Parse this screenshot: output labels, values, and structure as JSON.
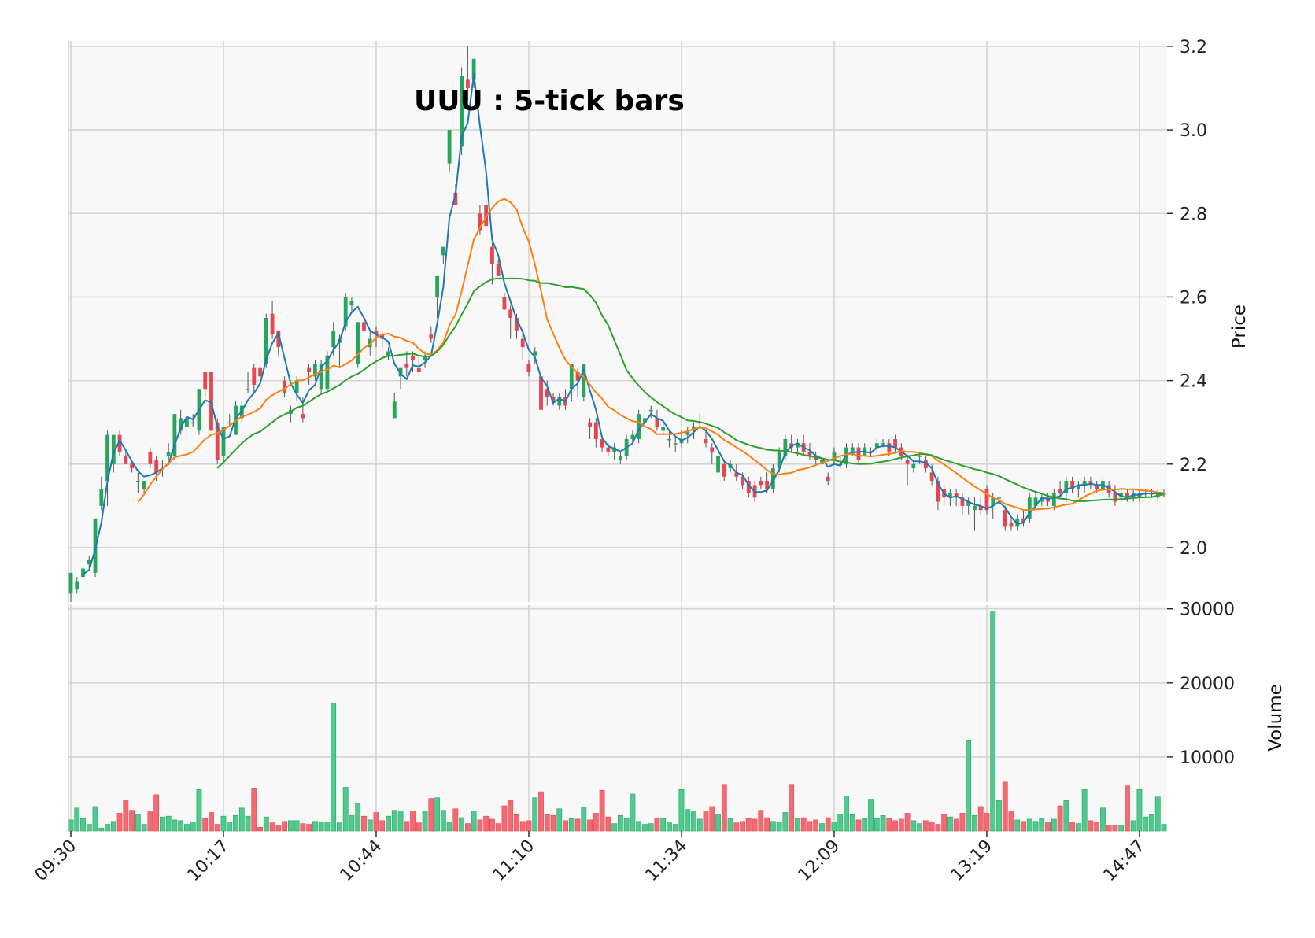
{
  "chart_data": {
    "type": "candlestick",
    "title": "UUU : 5-tick bars",
    "ylabel": "Price",
    "volume_label": "Volume",
    "price_ylim": [
      1.87,
      3.2
    ],
    "price_ticks": [
      2.0,
      2.2,
      2.4,
      2.6,
      2.8,
      3.0,
      3.2
    ],
    "volume_ylim": [
      0,
      30500
    ],
    "volume_ticks": [
      10000,
      20000,
      30000
    ],
    "x_tick_labels": [
      "09:30",
      "10:17",
      "10:44",
      "11:10",
      "11:34",
      "12:09",
      "13:19",
      "14:47"
    ],
    "x_tick_bar_index": [
      0,
      25,
      50,
      75,
      100,
      125,
      150,
      175
    ],
    "grid": true,
    "colors": {
      "up": "#26a65b",
      "down": "#e8454f",
      "volume_up": "#50c88f",
      "volume_down": "#f26b74",
      "ma_short": "#1f77b4",
      "ma_mid": "#ff7f0e",
      "ma_long": "#2ca02c",
      "panel_bg": "#f8f8f8",
      "grid": "#d4d4d4"
    },
    "moving_averages": [
      {
        "period": 3,
        "color_key": "ma_short"
      },
      {
        "period": 12,
        "color_key": "ma_mid"
      },
      {
        "period": 25,
        "color_key": "ma_long"
      }
    ],
    "bars": [
      [
        1.89,
        1.94,
        1.87,
        1.94,
        1500
      ],
      [
        1.9,
        1.93,
        1.89,
        1.92,
        3100
      ],
      [
        1.93,
        1.96,
        1.92,
        1.95,
        1700
      ],
      [
        1.96,
        1.98,
        1.95,
        1.97,
        900
      ],
      [
        1.94,
        2.07,
        1.93,
        2.07,
        3300
      ],
      [
        2.1,
        2.17,
        2.09,
        2.14,
        400
      ],
      [
        2.16,
        2.28,
        2.1,
        2.27,
        900
      ],
      [
        2.2,
        2.27,
        2.18,
        2.27,
        1300
      ],
      [
        2.27,
        2.28,
        2.22,
        2.23,
        2400
      ],
      [
        2.22,
        2.23,
        2.2,
        2.2,
        4200
      ],
      [
        2.2,
        2.21,
        2.18,
        2.19,
        2800
      ],
      [
        2.16,
        2.18,
        2.13,
        2.16,
        2300
      ],
      [
        2.14,
        2.16,
        2.13,
        2.16,
        900
      ],
      [
        2.23,
        2.24,
        2.19,
        2.2,
        2600
      ],
      [
        2.21,
        2.22,
        2.16,
        2.18,
        4900
      ],
      [
        2.19,
        2.21,
        2.17,
        2.19,
        1900
      ],
      [
        2.22,
        2.25,
        2.21,
        2.23,
        2000
      ],
      [
        2.22,
        2.32,
        2.21,
        2.32,
        1500
      ],
      [
        2.28,
        2.33,
        2.27,
        2.31,
        1400
      ],
      [
        2.29,
        2.31,
        2.26,
        2.31,
        900
      ],
      [
        2.3,
        2.32,
        2.29,
        2.3,
        1200
      ],
      [
        2.28,
        2.38,
        2.27,
        2.38,
        5600
      ],
      [
        2.42,
        2.42,
        2.36,
        2.38,
        1700
      ],
      [
        2.42,
        2.42,
        2.28,
        2.28,
        2500
      ],
      [
        2.3,
        2.31,
        2.2,
        2.21,
        900
      ],
      [
        2.22,
        2.29,
        2.2,
        2.29,
        2000
      ],
      [
        2.3,
        2.32,
        2.29,
        2.3,
        1200
      ],
      [
        2.27,
        2.35,
        2.27,
        2.34,
        2100
      ],
      [
        2.31,
        2.35,
        2.3,
        2.34,
        3100
      ],
      [
        2.38,
        2.42,
        2.37,
        2.38,
        2000
      ],
      [
        2.43,
        2.44,
        2.37,
        2.39,
        5700
      ],
      [
        2.43,
        2.46,
        2.4,
        2.41,
        500
      ],
      [
        2.44,
        2.56,
        2.43,
        2.55,
        1900
      ],
      [
        2.56,
        2.59,
        2.5,
        2.51,
        1100
      ],
      [
        2.52,
        2.52,
        2.46,
        2.48,
        800
      ],
      [
        2.4,
        2.41,
        2.36,
        2.37,
        1300
      ],
      [
        2.32,
        2.34,
        2.3,
        2.33,
        1400
      ],
      [
        2.37,
        2.41,
        2.35,
        2.4,
        1400
      ],
      [
        2.32,
        2.36,
        2.3,
        2.31,
        1000
      ],
      [
        2.43,
        2.44,
        2.39,
        2.42,
        900
      ],
      [
        2.41,
        2.45,
        2.4,
        2.44,
        1300
      ],
      [
        2.38,
        2.45,
        2.37,
        2.44,
        1200
      ],
      [
        2.38,
        2.47,
        2.37,
        2.46,
        1200
      ],
      [
        2.48,
        2.54,
        2.46,
        2.52,
        17300
      ],
      [
        2.49,
        2.51,
        2.43,
        2.5,
        1100
      ],
      [
        2.53,
        2.61,
        2.52,
        2.6,
        5900
      ],
      [
        2.58,
        2.6,
        2.56,
        2.59,
        2100
      ],
      [
        2.44,
        2.54,
        2.43,
        2.54,
        3800
      ],
      [
        2.54,
        2.55,
        2.47,
        2.52,
        2000
      ],
      [
        2.48,
        2.52,
        2.46,
        2.5,
        1500
      ],
      [
        2.52,
        2.53,
        2.48,
        2.51,
        2500
      ],
      [
        2.51,
        2.52,
        2.48,
        2.5,
        1400
      ],
      [
        2.46,
        2.48,
        2.45,
        2.47,
        2000
      ],
      [
        2.31,
        2.37,
        2.31,
        2.35,
        2800
      ],
      [
        2.41,
        2.43,
        2.38,
        2.43,
        2600
      ],
      [
        2.44,
        2.47,
        2.41,
        2.43,
        1300
      ],
      [
        2.46,
        2.47,
        2.42,
        2.45,
        2700
      ],
      [
        2.43,
        2.46,
        2.41,
        2.42,
        1100
      ],
      [
        2.45,
        2.47,
        2.43,
        2.46,
        2600
      ],
      [
        2.51,
        2.53,
        2.49,
        2.5,
        4400
      ],
      [
        2.6,
        2.65,
        2.55,
        2.65,
        4500
      ],
      [
        2.7,
        2.72,
        2.68,
        2.72,
        2800
      ],
      [
        2.92,
        3.0,
        2.9,
        3.0,
        1200
      ],
      [
        2.85,
        2.87,
        2.82,
        2.82,
        3000
      ],
      [
        2.96,
        3.15,
        2.94,
        3.13,
        1800
      ],
      [
        3.12,
        3.2,
        3.07,
        3.1,
        1000
      ],
      [
        3.12,
        3.17,
        3.1,
        3.17,
        2700
      ],
      [
        2.8,
        2.82,
        2.75,
        2.76,
        1500
      ],
      [
        2.82,
        2.83,
        2.77,
        2.77,
        2000
      ],
      [
        2.72,
        2.73,
        2.63,
        2.68,
        1600
      ],
      [
        2.68,
        2.69,
        2.65,
        2.65,
        1000
      ],
      [
        2.6,
        2.61,
        2.57,
        2.57,
        3400
      ],
      [
        2.57,
        2.58,
        2.5,
        2.55,
        4100
      ],
      [
        2.55,
        2.56,
        2.5,
        2.52,
        2200
      ],
      [
        2.5,
        2.51,
        2.45,
        2.48,
        1300
      ],
      [
        2.44,
        2.45,
        2.41,
        2.42,
        1400
      ],
      [
        2.46,
        2.48,
        2.44,
        2.47,
        4500
      ],
      [
        2.41,
        2.42,
        2.33,
        2.33,
        5300
      ],
      [
        2.38,
        2.4,
        2.34,
        2.36,
        2200
      ],
      [
        2.36,
        2.37,
        2.34,
        2.35,
        2100
      ],
      [
        2.34,
        2.37,
        2.33,
        2.36,
        3000
      ],
      [
        2.36,
        2.38,
        2.33,
        2.34,
        1400
      ],
      [
        2.38,
        2.44,
        2.35,
        2.44,
        1700
      ],
      [
        2.42,
        2.43,
        2.36,
        2.4,
        1600
      ],
      [
        2.36,
        2.44,
        2.35,
        2.44,
        3200
      ],
      [
        2.3,
        2.31,
        2.26,
        2.29,
        1500
      ],
      [
        2.3,
        2.31,
        2.24,
        2.26,
        2400
      ],
      [
        2.26,
        2.27,
        2.23,
        2.24,
        5500
      ],
      [
        2.24,
        2.25,
        2.22,
        2.23,
        1900
      ],
      [
        2.23,
        2.25,
        2.21,
        2.24,
        1000
      ],
      [
        2.21,
        2.23,
        2.2,
        2.22,
        2100
      ],
      [
        2.22,
        2.27,
        2.21,
        2.26,
        1700
      ],
      [
        2.26,
        2.28,
        2.25,
        2.27,
        5000
      ],
      [
        2.26,
        2.33,
        2.25,
        2.32,
        1300
      ],
      [
        2.3,
        2.33,
        2.29,
        2.31,
        900
      ],
      [
        2.33,
        2.34,
        2.31,
        2.33,
        1000
      ],
      [
        2.31,
        2.33,
        2.28,
        2.29,
        1700
      ],
      [
        2.28,
        2.3,
        2.27,
        2.29,
        1700
      ],
      [
        2.26,
        2.28,
        2.24,
        2.26,
        1100
      ],
      [
        2.25,
        2.27,
        2.23,
        2.25,
        900
      ],
      [
        2.25,
        2.28,
        2.24,
        2.26,
        5600
      ],
      [
        2.27,
        2.29,
        2.25,
        2.28,
        2900
      ],
      [
        2.28,
        2.3,
        2.26,
        2.29,
        2600
      ],
      [
        2.3,
        2.32,
        2.29,
        2.3,
        1600
      ],
      [
        2.26,
        2.28,
        2.24,
        2.25,
        2600
      ],
      [
        2.24,
        2.25,
        2.2,
        2.23,
        3300
      ],
      [
        2.18,
        2.23,
        2.18,
        2.22,
        2300
      ],
      [
        2.2,
        2.21,
        2.16,
        2.17,
        6300
      ],
      [
        2.19,
        2.21,
        2.18,
        2.2,
        1700
      ],
      [
        2.18,
        2.2,
        2.16,
        2.17,
        1100
      ],
      [
        2.17,
        2.18,
        2.14,
        2.15,
        1300
      ],
      [
        2.16,
        2.17,
        2.12,
        2.13,
        1700
      ],
      [
        2.15,
        2.16,
        2.11,
        2.12,
        1600
      ],
      [
        2.16,
        2.17,
        2.14,
        2.15,
        2800
      ],
      [
        2.16,
        2.18,
        2.13,
        2.14,
        1800
      ],
      [
        2.14,
        2.2,
        2.13,
        2.19,
        1300
      ],
      [
        2.19,
        2.24,
        2.18,
        2.23,
        1200
      ],
      [
        2.22,
        2.27,
        2.21,
        2.26,
        2500
      ],
      [
        2.25,
        2.27,
        2.23,
        2.24,
        6300
      ],
      [
        2.24,
        2.26,
        2.22,
        2.25,
        1700
      ],
      [
        2.25,
        2.27,
        2.22,
        2.23,
        1800
      ],
      [
        2.23,
        2.25,
        2.21,
        2.22,
        1300
      ],
      [
        2.22,
        2.23,
        2.2,
        2.21,
        1500
      ],
      [
        2.2,
        2.22,
        2.19,
        2.21,
        1000
      ],
      [
        2.17,
        2.18,
        2.15,
        2.16,
        1800
      ],
      [
        2.21,
        2.24,
        2.2,
        2.23,
        1200
      ],
      [
        2.2,
        2.22,
        2.19,
        2.2,
        2300
      ],
      [
        2.2,
        2.25,
        2.19,
        2.24,
        4700
      ],
      [
        2.23,
        2.25,
        2.22,
        2.24,
        2200
      ],
      [
        2.24,
        2.25,
        2.2,
        2.21,
        1500
      ],
      [
        2.22,
        2.25,
        2.22,
        2.24,
        1700
      ],
      [
        2.23,
        2.24,
        2.22,
        2.23,
        4300
      ],
      [
        2.24,
        2.26,
        2.23,
        2.25,
        1700
      ],
      [
        2.25,
        2.26,
        2.24,
        2.25,
        2100
      ],
      [
        2.25,
        2.26,
        2.22,
        2.23,
        1700
      ],
      [
        2.26,
        2.27,
        2.23,
        2.24,
        1400
      ],
      [
        2.24,
        2.25,
        2.21,
        2.22,
        1600
      ],
      [
        2.21,
        2.22,
        2.15,
        2.2,
        2400
      ],
      [
        2.19,
        2.21,
        2.18,
        2.2,
        1400
      ],
      [
        2.22,
        2.23,
        2.2,
        2.22,
        1000
      ],
      [
        2.21,
        2.22,
        2.18,
        2.19,
        1400
      ],
      [
        2.18,
        2.2,
        2.15,
        2.16,
        1200
      ],
      [
        2.16,
        2.17,
        2.09,
        2.11,
        900
      ],
      [
        2.14,
        2.15,
        2.1,
        2.12,
        2300
      ],
      [
        2.12,
        2.14,
        2.1,
        2.13,
        1900
      ],
      [
        2.13,
        2.14,
        2.1,
        2.12,
        1600
      ],
      [
        2.12,
        2.13,
        2.08,
        2.1,
        2400
      ],
      [
        2.1,
        2.12,
        2.08,
        2.11,
        12200
      ],
      [
        2.09,
        2.12,
        2.04,
        2.1,
        2100
      ],
      [
        2.1,
        2.12,
        2.08,
        2.09,
        3300
      ],
      [
        2.14,
        2.15,
        2.08,
        2.09,
        2400
      ],
      [
        2.1,
        2.13,
        2.07,
        2.12,
        29700
      ],
      [
        2.12,
        2.14,
        2.06,
        2.12,
        4100
      ],
      [
        2.09,
        2.1,
        2.04,
        2.05,
        6600
      ],
      [
        2.06,
        2.07,
        2.04,
        2.05,
        2600
      ],
      [
        2.05,
        2.08,
        2.04,
        2.07,
        1500
      ],
      [
        2.07,
        2.09,
        2.05,
        2.06,
        1300
      ],
      [
        2.07,
        2.13,
        2.06,
        2.12,
        1600
      ],
      [
        2.1,
        2.13,
        2.09,
        2.12,
        1300
      ],
      [
        2.11,
        2.13,
        2.1,
        2.12,
        1700
      ],
      [
        2.12,
        2.13,
        2.1,
        2.11,
        1200
      ],
      [
        2.1,
        2.14,
        2.09,
        2.13,
        1600
      ],
      [
        2.14,
        2.16,
        2.12,
        2.13,
        3400
      ],
      [
        2.13,
        2.17,
        2.11,
        2.16,
        4100
      ],
      [
        2.16,
        2.17,
        2.13,
        2.14,
        1200
      ],
      [
        2.14,
        2.16,
        2.12,
        2.15,
        1000
      ],
      [
        2.15,
        2.17,
        2.13,
        2.16,
        5600
      ],
      [
        2.16,
        2.17,
        2.14,
        2.15,
        1400
      ],
      [
        2.15,
        2.16,
        2.13,
        2.14,
        1200
      ],
      [
        2.14,
        2.17,
        2.13,
        2.16,
        3100
      ],
      [
        2.15,
        2.16,
        2.12,
        2.13,
        800
      ],
      [
        2.13,
        2.15,
        2.1,
        2.11,
        700
      ],
      [
        2.12,
        2.14,
        2.11,
        2.13,
        800
      ],
      [
        2.13,
        2.14,
        2.11,
        2.12,
        6100
      ],
      [
        2.12,
        2.14,
        2.11,
        2.13,
        1400
      ],
      [
        2.12,
        2.14,
        2.11,
        2.13,
        5600
      ],
      [
        2.13,
        2.14,
        2.12,
        2.13,
        1900
      ],
      [
        2.13,
        2.14,
        2.12,
        2.13,
        2200
      ],
      [
        2.12,
        2.14,
        2.11,
        2.13,
        4600
      ],
      [
        2.13,
        2.14,
        2.12,
        2.13,
        900
      ]
    ]
  }
}
